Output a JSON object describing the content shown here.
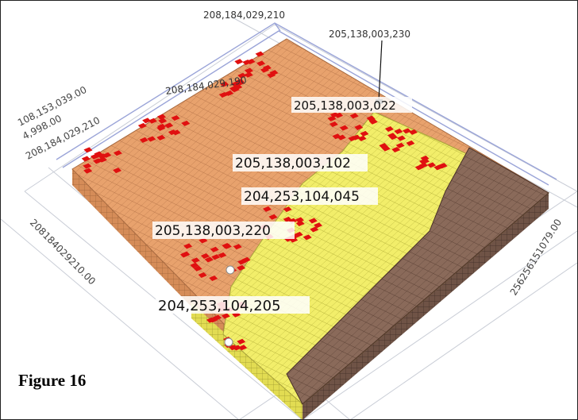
{
  "caption": "Figure 16",
  "chart_data": {
    "type": "3d-block-map",
    "axes": {
      "left_axis_label": "20818402921​0.00",
      "right_axis_label": "256256151079.00",
      "top_axis_labels": [
        "108,153,039.00",
        "4,998.00",
        "208,184,029,210"
      ]
    },
    "legend_colors": {
      "tan": "#e8a26d",
      "yellow": "#f2ee6a",
      "brown": "#8a6a5a",
      "red": "#e01010"
    },
    "annotations": [
      {
        "text": "208,184,029,210",
        "style": "small"
      },
      {
        "text": "205,138,003,230",
        "style": "small"
      },
      {
        "text": "208,184,029,190",
        "style": "small"
      },
      {
        "text": "205,138,003,022",
        "style": "boxed"
      },
      {
        "text": "205,138,003,102",
        "style": "boxed"
      },
      {
        "text": "204,253,104,045",
        "style": "boxed"
      },
      {
        "text": "205,138,003,220",
        "style": "boxed"
      },
      {
        "text": "204,253,104,205",
        "style": "boxed"
      }
    ]
  }
}
